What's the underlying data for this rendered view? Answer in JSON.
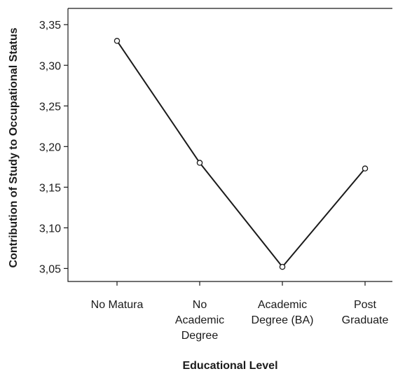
{
  "chart_data": {
    "type": "line",
    "title": "",
    "xlabel": "Educational Level",
    "ylabel": "Contribution of Study to Occupational Status",
    "categories": [
      [
        "No Matura"
      ],
      [
        "No",
        "Academic",
        "Degree"
      ],
      [
        "Academic",
        "Degree (BA)"
      ],
      [
        "Post",
        "Graduate"
      ]
    ],
    "series": [
      {
        "values": [
          3.33,
          3.18,
          3.052,
          3.173
        ]
      }
    ],
    "yticks": [
      3.05,
      3.1,
      3.15,
      3.2,
      3.25,
      3.3,
      3.35
    ],
    "ytick_labels": [
      "3,05",
      "3,10",
      "3,15",
      "3,20",
      "3,25",
      "3,30",
      "3,35"
    ],
    "ylim": [
      3.034,
      3.37
    ],
    "grid": false,
    "marker": "open-circle",
    "line_color": "#1a1a1a"
  }
}
